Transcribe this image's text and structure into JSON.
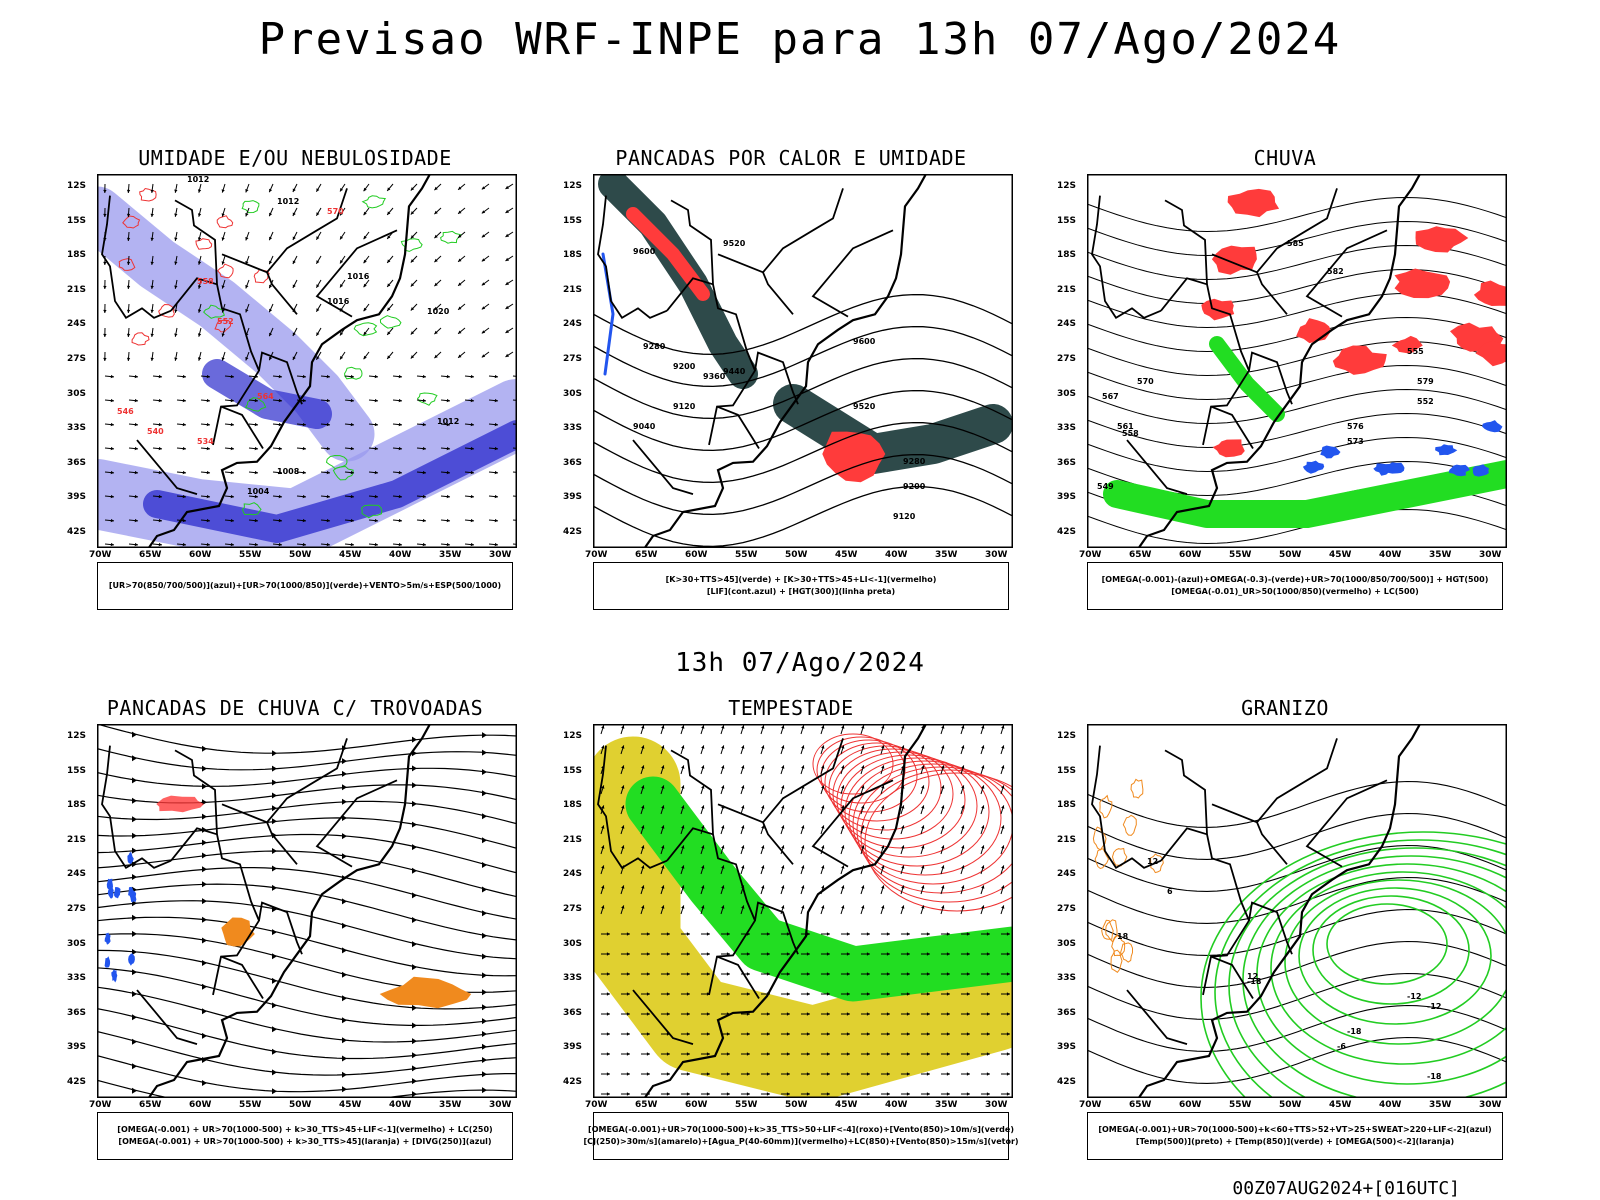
{
  "header": {
    "title": "Previsao WRF-INPE  para 13h 07/Ago/2024",
    "mid_date": "13h 07/Ago/2024",
    "run_label": "00Z07AUG2024+[016UTC]"
  },
  "axes": {
    "lat_ticks": [
      "12S",
      "15S",
      "18S",
      "21S",
      "24S",
      "27S",
      "30S",
      "33S",
      "36S",
      "39S",
      "42S"
    ],
    "lon_ticks": [
      "70W",
      "65W",
      "60W",
      "55W",
      "50W",
      "45W",
      "40W",
      "35W",
      "30W"
    ]
  },
  "panels": [
    {
      "title": "UMIDADE E/OU NEBULOSIDADE",
      "legend": [
        "[UR>70(850/700/500)](azul)+[UR>70(1000/850)](verde)+VENTO>5m/s+ESP(500/1000)"
      ],
      "contour_labels": [
        "1012",
        "1012",
        "1016",
        "1016",
        "1008",
        "1004",
        "1012",
        "1020",
        "570",
        "564",
        "558",
        "552",
        "546",
        "540",
        "534"
      ]
    },
    {
      "title": "PANCADAS POR CALOR E UMIDADE",
      "legend": [
        "[K>30+TTS>45](verde) + [K>30+TTS>45+LI<-1](vermelho)",
        "[LIF](cont.azul) + [HGT(300)](linha preta)"
      ],
      "contour_labels": [
        "9600",
        "9520",
        "9440",
        "9360",
        "9280",
        "9200",
        "9120",
        "9040",
        "9600",
        "9520",
        "9280",
        "9200",
        "9120"
      ]
    },
    {
      "title": "CHUVA",
      "legend": [
        "[OMEGA(-0.001)-(azul)+OMEGA(-0.3)-(verde)+UR>70(1000/850/700/500)] + HGT(500)",
        "[OMEGA(-0.01)_UR>50(1000/850)(vermelho) + LC(500)"
      ],
      "contour_labels": [
        "585",
        "582",
        "579",
        "576",
        "573",
        "570",
        "567",
        "561",
        "558",
        "555",
        "552",
        "549"
      ]
    },
    {
      "title": "PANCADAS DE CHUVA C/ TROVOADAS",
      "legend": [
        "[OMEGA(-0.001) + UR>70(1000-500) + k>30_TTS>45+LIF<-1](vermelho) + LC(250)",
        "[OMEGA(-0.001) + UR>70(1000-500) + k>30_TTS>45](laranja) + [DIVG(250)](azul)"
      ],
      "contour_labels": []
    },
    {
      "title": "TEMPESTADE",
      "legend": [
        "[OMEGA(-0.001)+UR>70(1000-500)+k>35_TTS>50+LIF<-4](roxo)+[Vento(850)>10m/s](verde)",
        "[CJ(250)>30m/s](amarelo)+[Agua_P(40-60mm)](vermelho)+LC(850)+[Vento(850)>15m/s](vetor)"
      ],
      "contour_labels": []
    },
    {
      "title": "GRANIZO",
      "legend": [
        "[OMEGA(-0.001)+UR>70(1000-500)+k<60+TTS>52+VT>25+SWEAT>220+LIF<-2](azul)",
        "[Temp(500)](preto) + [Temp(850)](verde) + [OMEGA(500)<-2](laranja)"
      ],
      "contour_labels": [
        "12",
        "6",
        "18",
        "12",
        "-18",
        "-18",
        "-12",
        "-12",
        "-6",
        "-18"
      ]
    }
  ],
  "colors": {
    "humidity_blue": "#9a9aee",
    "humidity_dark_blue": "#2b2bcc",
    "green_contour": "#22cc22",
    "red_contour": "#ee3333",
    "dark_teal": "#2e4a4a",
    "rain_green": "#22dd22",
    "rain_red": "#ff3b3b",
    "rain_blue": "#2255ee",
    "orange": "#f08a1e",
    "yellow": "#e0d030"
  }
}
